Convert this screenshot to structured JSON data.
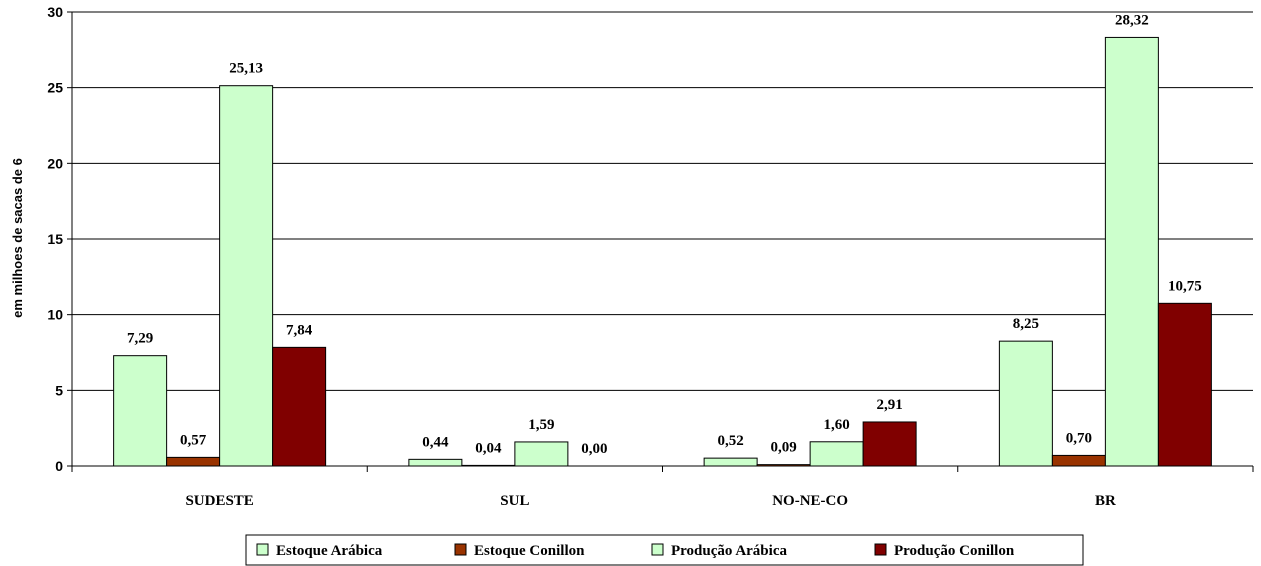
{
  "chart_data": {
    "type": "bar",
    "ylabel": "em milhoes de sacas de 6",
    "categories": [
      "SUDESTE",
      "SUL",
      "NO-NE-CO",
      "BR"
    ],
    "ylim": [
      0,
      30
    ],
    "yticks": [
      "0",
      "5",
      "10",
      "15",
      "20",
      "25",
      "30"
    ],
    "grid": true,
    "legend_position": "bottom",
    "series": [
      {
        "name": "Estoque Arábica",
        "color": "#ccffcc",
        "values": [
          7.29,
          0.44,
          0.52,
          8.25
        ],
        "labels": [
          "7,29",
          "0,44",
          "0,52",
          "8,25"
        ]
      },
      {
        "name": "Estoque Conillon",
        "color": "#993300",
        "values": [
          0.57,
          0.04,
          0.09,
          0.7
        ],
        "labels": [
          "0,57",
          "0,04",
          "0,09",
          "0,70"
        ]
      },
      {
        "name": "Produção Arábica",
        "color": "#ccffcc",
        "values": [
          25.13,
          1.59,
          1.6,
          28.32
        ],
        "labels": [
          "25,13",
          "1,59",
          "1,60",
          "28,32"
        ]
      },
      {
        "name": "Produção Conillon",
        "color": "#800000",
        "values": [
          7.84,
          0.0,
          2.91,
          10.75
        ],
        "labels": [
          "7,84",
          "0,00",
          "2,91",
          "10,75"
        ]
      }
    ]
  }
}
